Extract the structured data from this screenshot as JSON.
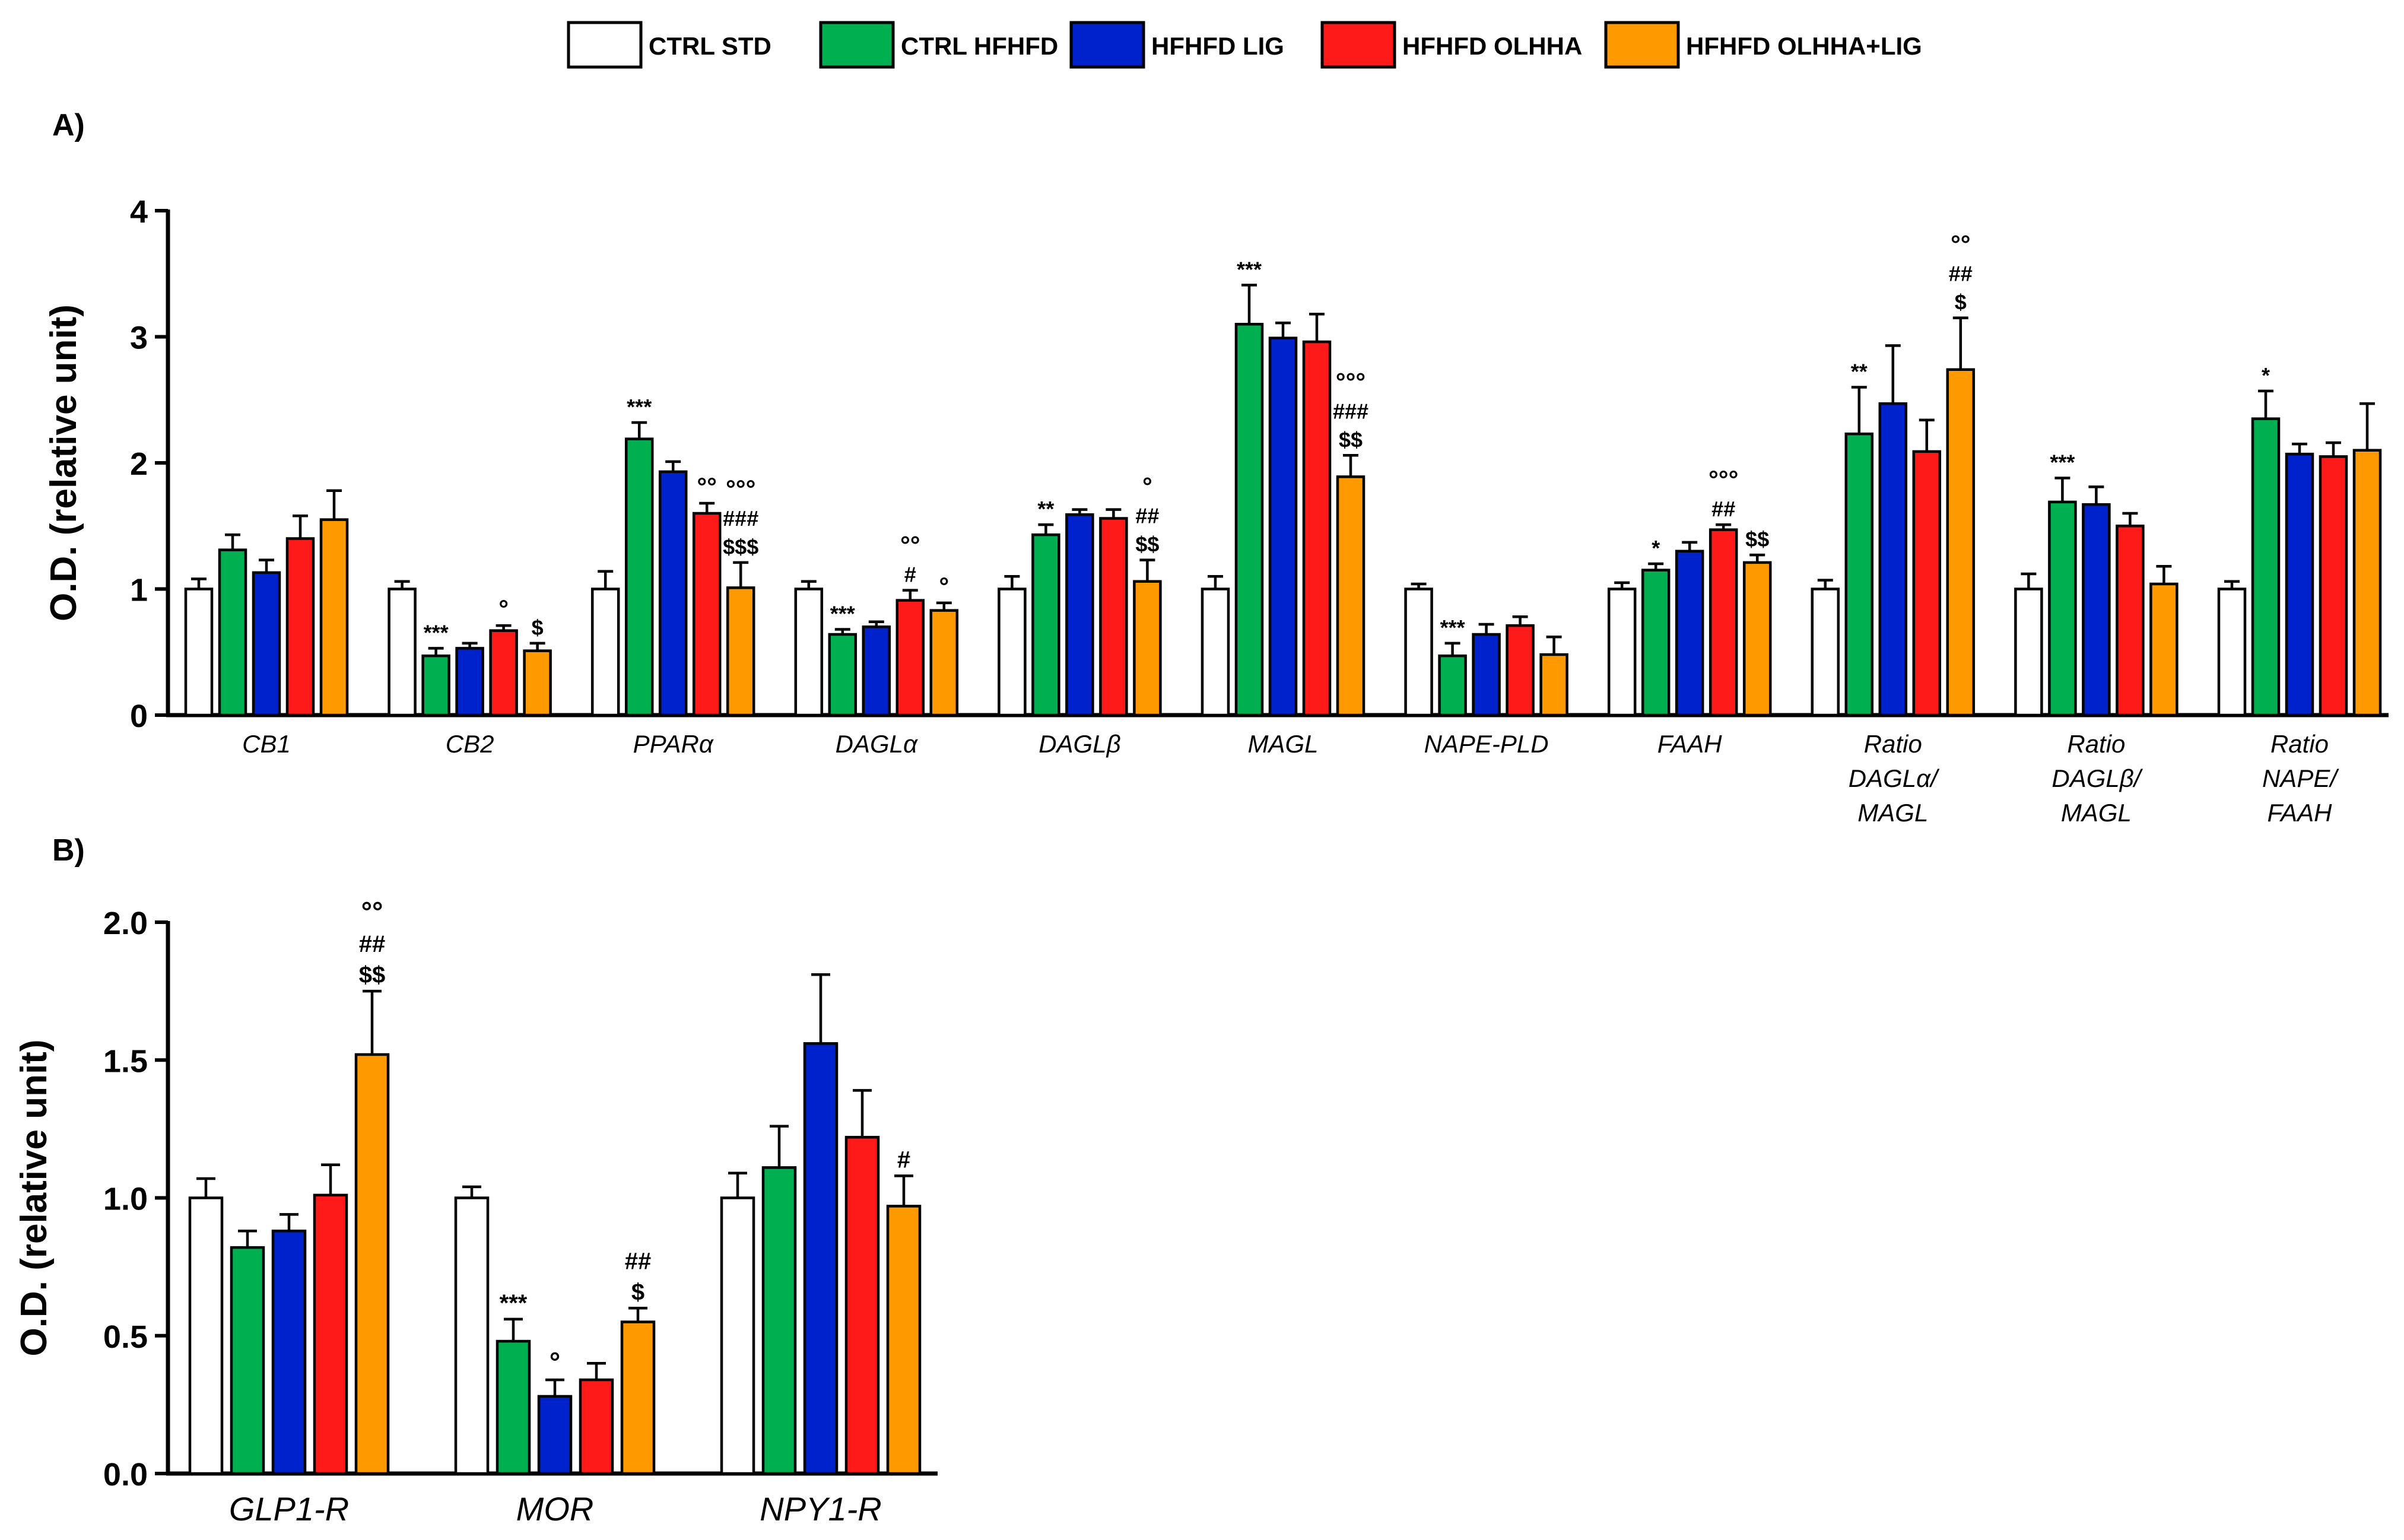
{
  "legend": {
    "items": [
      {
        "label": "CTRL STD",
        "color": "#ffffff"
      },
      {
        "label": "CTRL HFHFD",
        "color": "#00b050"
      },
      {
        "label": "HFHFD LIG",
        "color": "#0022cc"
      },
      {
        "label": "HFHFD OLHHA",
        "color": "#ff1a1a"
      },
      {
        "label": "HFHFD OLHHA+LIG",
        "color": "#ff9900"
      }
    ]
  },
  "chart_data": [
    {
      "panel": "A)",
      "type": "bar",
      "ylabel": "O.D. (relative unit)",
      "ylim": [
        0,
        4
      ],
      "yticks": [
        "0",
        "1",
        "2",
        "3",
        "4"
      ],
      "series_names": [
        "CTRL STD",
        "CTRL HFHFD",
        "HFHFD LIG",
        "HFHFD OLHHA",
        "HFHFD OLHHA+LIG"
      ],
      "categories": [
        {
          "lines": [
            "CB1"
          ],
          "values": [
            1.0,
            1.31,
            1.13,
            1.4,
            1.55
          ],
          "errors": [
            0.08,
            0.12,
            0.1,
            0.18,
            0.23
          ],
          "sig": [
            [],
            [
              "",
              "",
              ""
            ],
            [],
            [],
            []
          ]
        },
        {
          "lines": [
            "CB2"
          ],
          "values": [
            1.0,
            0.47,
            0.53,
            0.67,
            0.51
          ],
          "errors": [
            0.06,
            0.06,
            0.04,
            0.04,
            0.06
          ],
          "sig": [
            [],
            [
              "***"
            ],
            [],
            [
              "°"
            ],
            [
              "$"
            ]
          ]
        },
        {
          "lines": [
            "PPARα"
          ],
          "values": [
            1.0,
            2.19,
            1.93,
            1.6,
            1.01
          ],
          "errors": [
            0.14,
            0.13,
            0.08,
            0.08,
            0.2
          ],
          "sig": [
            [],
            [
              "***"
            ],
            [],
            [
              "°°"
            ],
            [
              "°°°",
              "###",
              "$$$"
            ]
          ]
        },
        {
          "lines": [
            "DAGLα"
          ],
          "values": [
            1.0,
            0.64,
            0.7,
            0.91,
            0.83
          ],
          "errors": [
            0.06,
            0.04,
            0.04,
            0.08,
            0.06
          ],
          "sig": [
            [],
            [
              "***"
            ],
            [],
            [
              "°°",
              "#"
            ],
            [
              "°"
            ]
          ]
        },
        {
          "lines": [
            "DAGLβ"
          ],
          "values": [
            1.0,
            1.43,
            1.59,
            1.56,
            1.06
          ],
          "errors": [
            0.1,
            0.08,
            0.04,
            0.07,
            0.17
          ],
          "sig": [
            [],
            [
              "**"
            ],
            [],
            [],
            [
              "°",
              "##",
              "$$"
            ]
          ]
        },
        {
          "lines": [
            "MAGL"
          ],
          "values": [
            1.0,
            3.1,
            2.99,
            2.96,
            1.89
          ],
          "errors": [
            0.1,
            0.31,
            0.12,
            0.22,
            0.17
          ],
          "sig": [
            [],
            [
              "***"
            ],
            [],
            [],
            [
              "°°°",
              "###",
              "$$"
            ]
          ]
        },
        {
          "lines": [
            "NAPE-PLD"
          ],
          "values": [
            1.0,
            0.47,
            0.64,
            0.71,
            0.48
          ],
          "errors": [
            0.04,
            0.1,
            0.08,
            0.07,
            0.14
          ],
          "sig": [
            [],
            [
              "***"
            ],
            [],
            [],
            []
          ]
        },
        {
          "lines": [
            "FAAH"
          ],
          "values": [
            1.0,
            1.15,
            1.3,
            1.47,
            1.21
          ],
          "errors": [
            0.05,
            0.05,
            0.07,
            0.04,
            0.06
          ],
          "sig": [
            [],
            [
              "*"
            ],
            [],
            [
              "°°°",
              "##"
            ],
            [
              "$$"
            ]
          ]
        },
        {
          "lines": [
            "Ratio",
            "DAGLα/",
            "MAGL"
          ],
          "values": [
            1.0,
            2.23,
            2.47,
            2.09,
            2.74
          ],
          "errors": [
            0.07,
            0.37,
            0.46,
            0.25,
            0.41
          ],
          "sig": [
            [],
            [
              "**"
            ],
            [],
            [],
            [
              "°°",
              "##",
              "$"
            ]
          ]
        },
        {
          "lines": [
            "Ratio",
            "DAGLβ/",
            "MAGL"
          ],
          "values": [
            1.0,
            1.69,
            1.67,
            1.5,
            1.04
          ],
          "errors": [
            0.12,
            0.19,
            0.14,
            0.1,
            0.14
          ],
          "sig": [
            [],
            [
              "***"
            ],
            [],
            [],
            []
          ]
        },
        {
          "lines": [
            "Ratio",
            "NAPE/",
            "FAAH"
          ],
          "values": [
            1.0,
            2.35,
            2.07,
            2.05,
            2.1
          ],
          "errors": [
            0.06,
            0.22,
            0.08,
            0.11,
            0.37
          ],
          "sig": [
            [],
            [
              "*"
            ],
            [],
            [],
            []
          ]
        }
      ]
    },
    {
      "panel": "B)",
      "type": "bar",
      "ylabel": "O.D. (relative unit)",
      "ylim": [
        0,
        2
      ],
      "yticks": [
        "0.0",
        "0.5",
        "1.0",
        "1.5",
        "2.0"
      ],
      "series_names": [
        "CTRL STD",
        "CTRL HFHFD",
        "HFHFD LIG",
        "HFHFD OLHHA",
        "HFHFD OLHHA+LIG"
      ],
      "categories": [
        {
          "lines": [
            "GLP1-R"
          ],
          "values": [
            1.0,
            0.82,
            0.88,
            1.01,
            1.52
          ],
          "errors": [
            0.07,
            0.06,
            0.06,
            0.11,
            0.23
          ],
          "sig": [
            [],
            [],
            [],
            [],
            [
              "°°",
              "##",
              "$$"
            ]
          ]
        },
        {
          "lines": [
            "MOR"
          ],
          "values": [
            1.0,
            0.48,
            0.28,
            0.34,
            0.55
          ],
          "errors": [
            0.04,
            0.08,
            0.06,
            0.06,
            0.05
          ],
          "sig": [
            [],
            [
              "***"
            ],
            [
              "°"
            ],
            [],
            [
              "##",
              "$"
            ]
          ]
        },
        {
          "lines": [
            "NPY1-R"
          ],
          "values": [
            1.0,
            1.11,
            1.56,
            1.22,
            0.97
          ],
          "errors": [
            0.09,
            0.15,
            0.25,
            0.17,
            0.11
          ],
          "sig": [
            [],
            [],
            [],
            [],
            [
              "#"
            ]
          ]
        }
      ]
    }
  ]
}
